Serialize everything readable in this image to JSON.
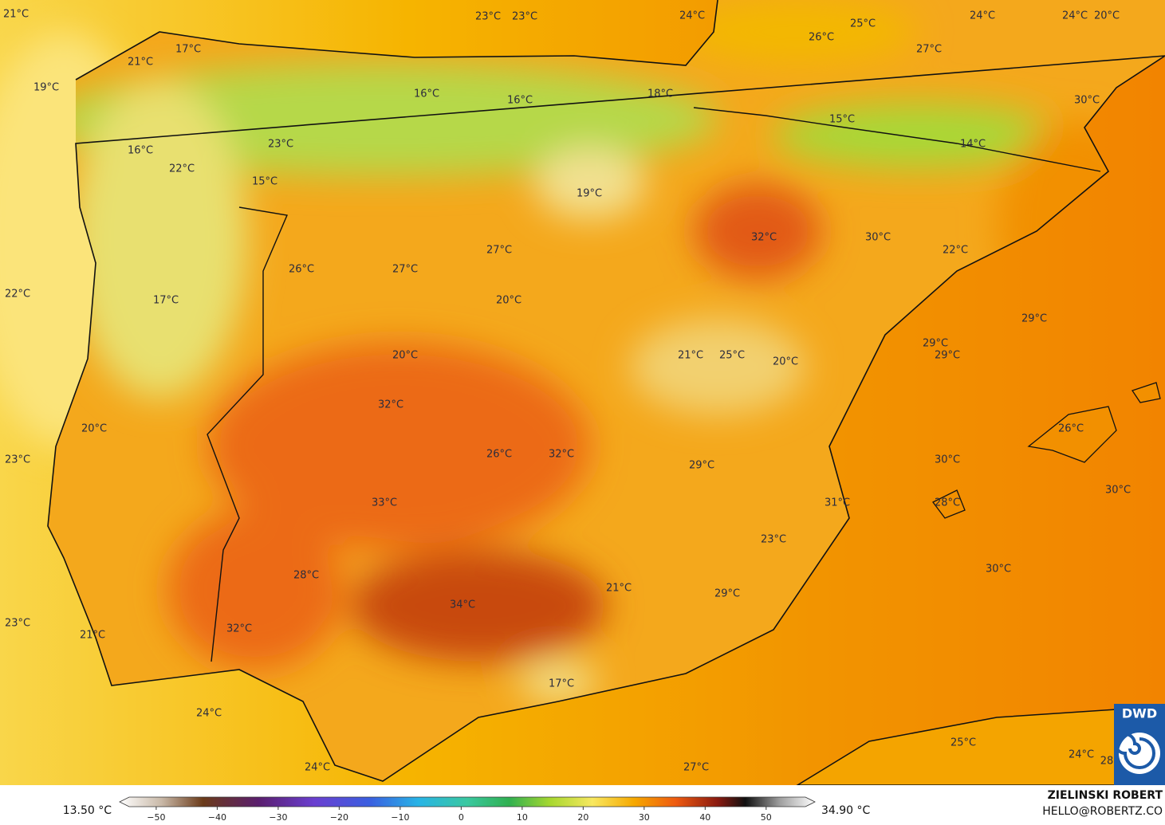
{
  "map": {
    "labels": [
      "21°C",
      "23°C",
      "23°C",
      "24°C",
      "25°C",
      "24°C",
      "24°C",
      "20°C",
      "26°C",
      "27°C",
      "21°C",
      "17°C",
      "19°C",
      "16°C",
      "16°C",
      "18°C",
      "30°C",
      "15°C",
      "14°C",
      "16°C",
      "23°C",
      "22°C",
      "15°C",
      "19°C",
      "32°C",
      "30°C",
      "22°C",
      "26°C",
      "27°C",
      "27°C",
      "22°C",
      "17°C",
      "20°C",
      "29°C",
      "29°C",
      "29°C",
      "21°C",
      "25°C",
      "20°C",
      "20°C",
      "32°C",
      "20°C",
      "26°C",
      "26°C",
      "32°C",
      "23°C",
      "30°C",
      "29°C",
      "30°C",
      "31°C",
      "28°C",
      "33°C",
      "23°C",
      "30°C",
      "28°C",
      "21°C",
      "29°C",
      "34°C",
      "23°C",
      "32°C",
      "21°C",
      "17°C",
      "24°C",
      "25°C",
      "24°C",
      "28",
      "24°C",
      "27°C"
    ],
    "colorbar": {
      "min_label": "13.50 °C",
      "max_label": "34.90 °C",
      "lim": [
        -56,
        58
      ],
      "ticks": [
        {
          "value": -50,
          "label": "−50"
        },
        {
          "value": -40,
          "label": "−40"
        },
        {
          "value": -30,
          "label": "−30"
        },
        {
          "value": -20,
          "label": "−20"
        },
        {
          "value": -10,
          "label": "−10"
        },
        0,
        10,
        20,
        30,
        40,
        50
      ]
    },
    "credit": {
      "name": "ZIELINSKI ROBERT",
      "contact": "HELLO@ROBERTZ.CO"
    },
    "logo": "DWD"
  }
}
